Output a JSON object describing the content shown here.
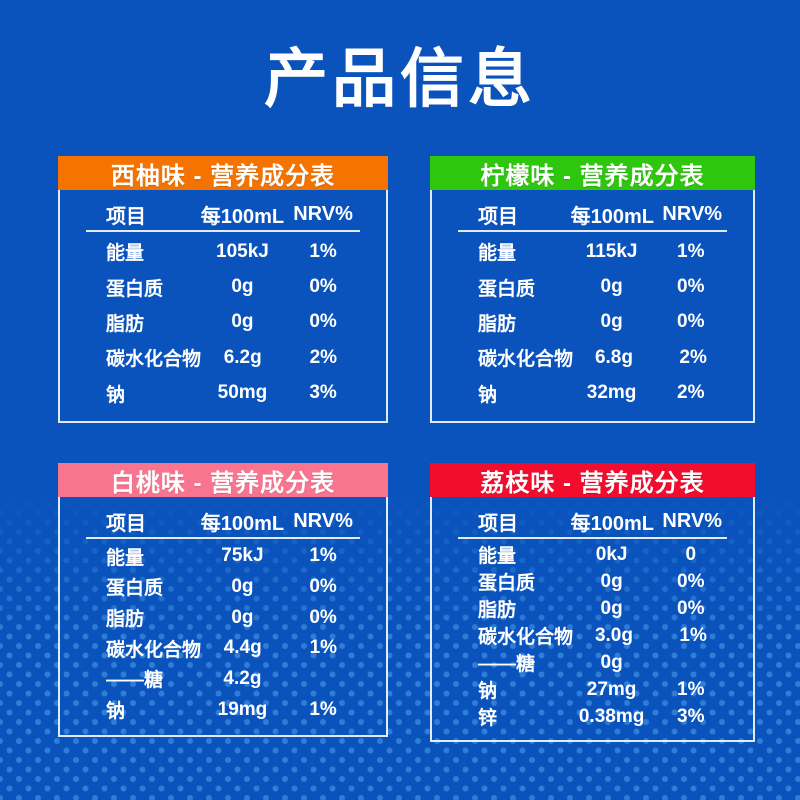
{
  "page": {
    "title": "产品信息",
    "background_color": "#0A53BC",
    "dot_color": "#3081D8"
  },
  "table_columns": {
    "item": "项目",
    "per": "每100mL",
    "nrv": "NRV%"
  },
  "tables": [
    {
      "id": "grapefruit",
      "header": "西柚味 - 营养成分表",
      "header_color": "#F57300",
      "rows": [
        {
          "item": "能量",
          "value": "105kJ",
          "nrv": "1%"
        },
        {
          "item": "蛋白质",
          "value": "0g",
          "nrv": "0%"
        },
        {
          "item": "脂肪",
          "value": "0g",
          "nrv": "0%"
        },
        {
          "item": "碳水化合物",
          "value": "6.2g",
          "nrv": "2%"
        },
        {
          "item": "钠",
          "value": "50mg",
          "nrv": "3%"
        }
      ]
    },
    {
      "id": "lemon",
      "header": "柠檬味 - 营养成分表",
      "header_color": "#2EC70E",
      "rows": [
        {
          "item": "能量",
          "value": "115kJ",
          "nrv": "1%"
        },
        {
          "item": "蛋白质",
          "value": "0g",
          "nrv": "0%"
        },
        {
          "item": "脂肪",
          "value": "0g",
          "nrv": "0%"
        },
        {
          "item": "碳水化合物",
          "value": "6.8g",
          "nrv": "2%"
        },
        {
          "item": "钠",
          "value": "32mg",
          "nrv": "2%"
        }
      ]
    },
    {
      "id": "peach",
      "header": "白桃味 - 营养成分表",
      "header_color": "#F9758F",
      "rows": [
        {
          "item": "能量",
          "value": "75kJ",
          "nrv": "1%"
        },
        {
          "item": "蛋白质",
          "value": "0g",
          "nrv": "0%"
        },
        {
          "item": "脂肪",
          "value": "0g",
          "nrv": "0%"
        },
        {
          "item": "碳水化合物",
          "value": "4.4g",
          "nrv": "1%"
        },
        {
          "item": "——糖",
          "value": "4.2g",
          "nrv": ""
        },
        {
          "item": "钠",
          "value": "19mg",
          "nrv": "1%"
        }
      ]
    },
    {
      "id": "lychee",
      "header": "荔枝味 - 营养成分表",
      "header_color": "#F20D2F",
      "rows": [
        {
          "item": "能量",
          "value": "0kJ",
          "nrv": "0"
        },
        {
          "item": "蛋白质",
          "value": "0g",
          "nrv": "0%"
        },
        {
          "item": "脂肪",
          "value": "0g",
          "nrv": "0%"
        },
        {
          "item": "碳水化合物",
          "value": "3.0g",
          "nrv": "1%"
        },
        {
          "item": "——糖",
          "value": "0g",
          "nrv": ""
        },
        {
          "item": "钠",
          "value": "27mg",
          "nrv": "1%"
        },
        {
          "item": "锌",
          "value": "0.38mg",
          "nrv": "3%"
        }
      ]
    }
  ]
}
